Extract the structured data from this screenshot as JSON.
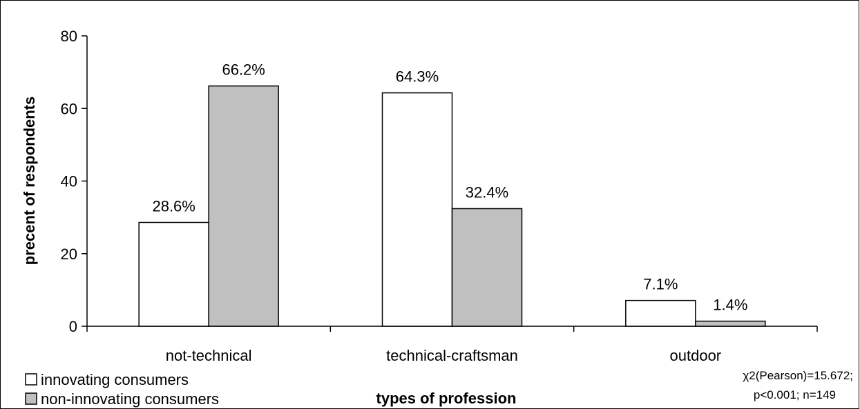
{
  "chart_data": {
    "type": "bar",
    "categories": [
      "not-technical",
      "technical-craftsman",
      "outdoor"
    ],
    "series": [
      {
        "name": "innovating consumers",
        "values": [
          28.6,
          64.3,
          7.1
        ],
        "labels": [
          "28.6%",
          "64.3%",
          "7.1%"
        ],
        "color": "#ffffff"
      },
      {
        "name": "non-innovating consumers",
        "values": [
          66.2,
          32.4,
          1.4
        ],
        "labels": [
          "66.2%",
          "32.4%",
          "1.4%"
        ],
        "color": "#c0c0c0"
      }
    ],
    "xlabel": "types of profession",
    "ylabel": "precent of respondents",
    "ylim": [
      0,
      80
    ],
    "yticks": [
      0,
      20,
      40,
      60,
      80
    ],
    "grid": false,
    "legend": "bottom-left",
    "annotation": [
      "χ2(Pearson)=15.672;",
      "p<0.001; n=149"
    ]
  }
}
